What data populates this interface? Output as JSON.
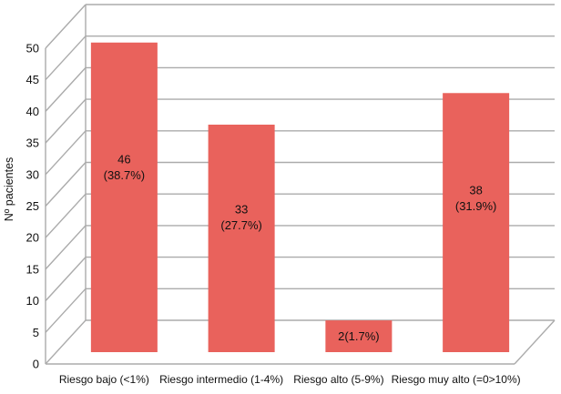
{
  "chart_data": {
    "type": "bar",
    "projection": "3d-perspective",
    "ylabel": "Nº pacientes",
    "xlabel": "",
    "categories": [
      "Riesgo bajo (<1%)",
      "Riesgo intermedio (1-4%)",
      "Riesgo alto (5-9%)",
      "Riesgo muy alto (=0>10%)"
    ],
    "values": [
      46,
      33,
      2,
      38
    ],
    "percent_labels": [
      "38.7%",
      "27.7%",
      "1.7%",
      "31.9%"
    ],
    "bar_labels": [
      [
        "46",
        "(38.7%)"
      ],
      [
        "33",
        "(27.7%)"
      ],
      [
        "2(1.7%)"
      ],
      [
        "38",
        "(31.9%)"
      ]
    ],
    "y_ticks": [
      0,
      5,
      10,
      15,
      20,
      25,
      30,
      35,
      40,
      45,
      50
    ],
    "ylim": [
      0,
      50
    ],
    "grid": true,
    "legend_position": "none",
    "colors": {
      "bar": "#E9625C",
      "gridline": "#ABABAB",
      "text": "#111111",
      "background": "#FFFFFF"
    }
  }
}
